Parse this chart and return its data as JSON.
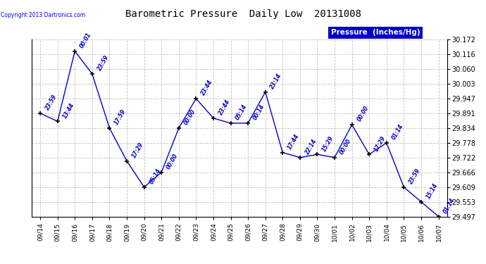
{
  "title": "Barometric Pressure  Daily Low  20131008",
  "ylabel": "Pressure  (Inches/Hg)",
  "copyright": "Copyright 2013 Dartronics.com",
  "line_color": "#0000CC",
  "background_color": "#ffffff",
  "grid_color": "#bbbbbb",
  "legend_bg": "#0000CC",
  "dates": [
    "09/14",
    "09/15",
    "09/16",
    "09/17",
    "09/18",
    "09/19",
    "09/20",
    "09/21",
    "09/22",
    "09/23",
    "09/24",
    "09/25",
    "09/26",
    "09/27",
    "09/28",
    "09/29",
    "09/30",
    "10/01",
    "10/02",
    "10/03",
    "10/04",
    "10/05",
    "10/06",
    "10/07"
  ],
  "values": [
    29.891,
    29.86,
    30.128,
    30.041,
    29.834,
    29.709,
    29.609,
    29.666,
    29.834,
    29.947,
    29.872,
    29.853,
    29.853,
    29.972,
    29.741,
    29.722,
    29.734,
    29.722,
    29.847,
    29.734,
    29.778,
    29.609,
    29.553,
    29.497
  ],
  "point_labels": [
    "23:59",
    "13:44",
    "00:01",
    "23:59",
    "17:59",
    "17:29",
    "05:14",
    "00:00",
    "00:00",
    "23:44",
    "23:44",
    "05:14",
    "00:14",
    "23:14",
    "17:44",
    "22:14",
    "15:29",
    "00:00",
    "00:00",
    "17:29",
    "01:14",
    "23:59",
    "15:14",
    "01:14"
  ],
  "ylim_min": 29.497,
  "ylim_max": 30.172,
  "yticks": [
    29.497,
    29.553,
    29.609,
    29.666,
    29.722,
    29.778,
    29.834,
    29.891,
    29.947,
    30.003,
    30.06,
    30.116,
    30.172
  ]
}
